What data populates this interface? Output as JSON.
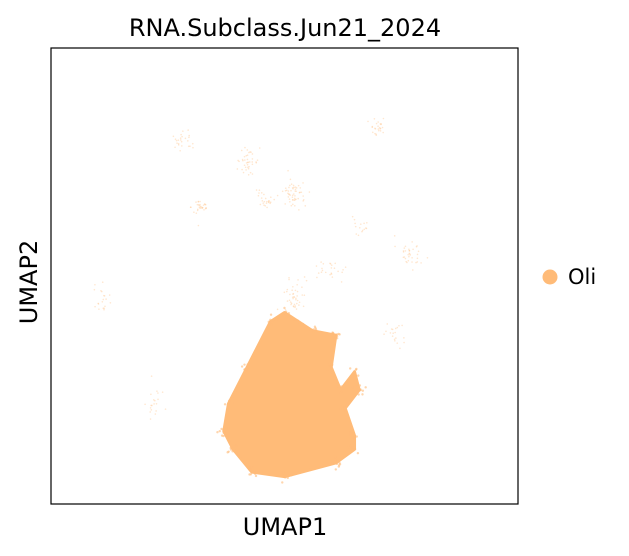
{
  "chart_data": {
    "type": "scatter",
    "title": "RNA.Subclass.Jun21_2024",
    "xlabel": "UMAP1",
    "ylabel": "UMAP2",
    "xticks": [],
    "yticks": [],
    "grid": false,
    "legend_position": "right",
    "series": [
      {
        "name": "Oli",
        "color": "#ffbb78",
        "clusters": [
          {
            "role": "main",
            "points": [
              [
                0.47,
                0.6
              ],
              [
                0.5,
                0.58
              ],
              [
                0.53,
                0.6
              ],
              [
                0.56,
                0.62
              ],
              [
                0.61,
                0.63
              ],
              [
                0.6,
                0.7
              ],
              [
                0.62,
                0.75
              ],
              [
                0.65,
                0.71
              ],
              [
                0.66,
                0.75
              ],
              [
                0.63,
                0.79
              ],
              [
                0.65,
                0.85
              ],
              [
                0.65,
                0.88
              ],
              [
                0.61,
                0.91
              ],
              [
                0.5,
                0.94
              ],
              [
                0.43,
                0.93
              ],
              [
                0.39,
                0.88
              ],
              [
                0.37,
                0.84
              ],
              [
                0.38,
                0.78
              ],
              [
                0.42,
                0.7
              ]
            ]
          },
          {
            "role": "satellite",
            "center": [
              0.52,
              0.55
            ],
            "spread": [
              0.01,
              0.02
            ],
            "count": 45
          },
          {
            "role": "satellite",
            "center": [
              0.52,
              0.32
            ],
            "spread": [
              0.012,
              0.015
            ],
            "count": 55
          },
          {
            "role": "satellite",
            "center": [
              0.42,
              0.25
            ],
            "spread": [
              0.012,
              0.012
            ],
            "count": 40
          },
          {
            "role": "satellite",
            "center": [
              0.46,
              0.33
            ],
            "spread": [
              0.01,
              0.01
            ],
            "count": 25
          },
          {
            "role": "satellite",
            "center": [
              0.32,
              0.35
            ],
            "spread": [
              0.01,
              0.012
            ],
            "count": 30
          },
          {
            "role": "satellite",
            "center": [
              0.28,
              0.2
            ],
            "spread": [
              0.015,
              0.012
            ],
            "count": 25
          },
          {
            "role": "satellite",
            "center": [
              0.7,
              0.17
            ],
            "spread": [
              0.008,
              0.01
            ],
            "count": 25
          },
          {
            "role": "satellite",
            "center": [
              0.77,
              0.45
            ],
            "spread": [
              0.015,
              0.015
            ],
            "count": 35
          },
          {
            "role": "satellite",
            "center": [
              0.6,
              0.49
            ],
            "spread": [
              0.02,
              0.012
            ],
            "count": 25
          },
          {
            "role": "satellite",
            "center": [
              0.74,
              0.63
            ],
            "spread": [
              0.012,
              0.012
            ],
            "count": 20
          },
          {
            "role": "satellite",
            "center": [
              0.11,
              0.55
            ],
            "spread": [
              0.012,
              0.015
            ],
            "count": 20
          },
          {
            "role": "satellite",
            "center": [
              0.22,
              0.78
            ],
            "spread": [
              0.008,
              0.015
            ],
            "count": 20
          },
          {
            "role": "satellite",
            "center": [
              0.66,
              0.39
            ],
            "spread": [
              0.012,
              0.012
            ],
            "count": 15
          }
        ]
      }
    ]
  }
}
